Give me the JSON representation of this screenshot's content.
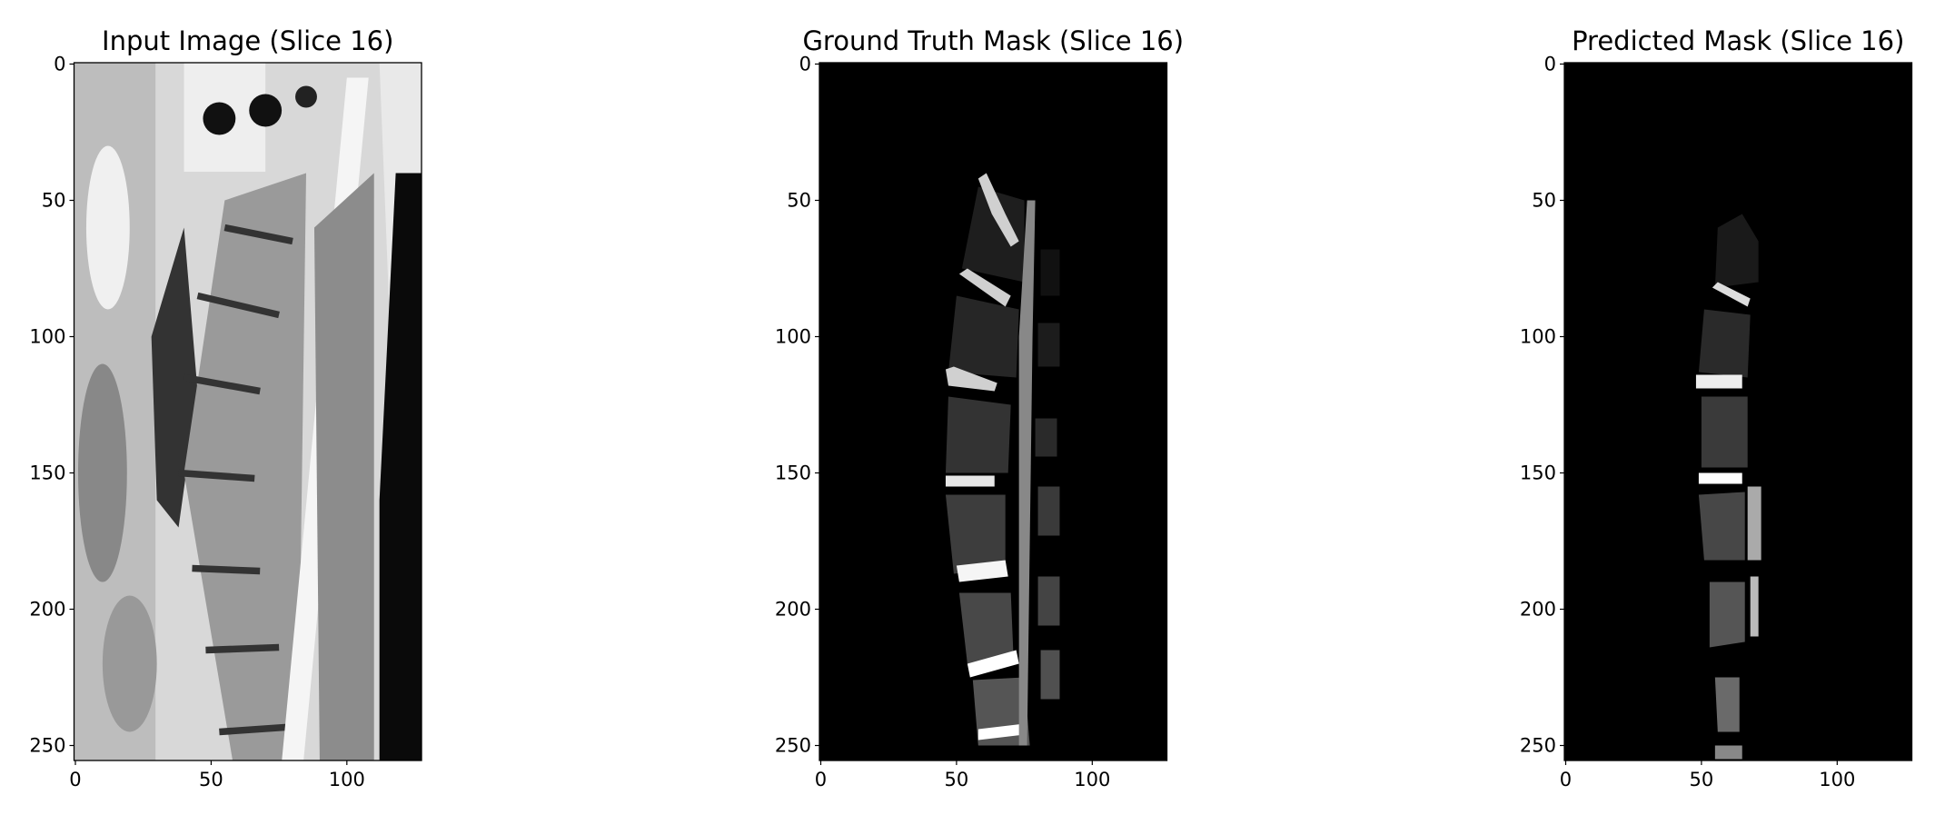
{
  "chart_data": [
    {
      "type": "image",
      "title": "Input Image (Slice 16)",
      "xlim": [
        -0.5,
        127.5
      ],
      "ylim": [
        255.5,
        -0.5
      ],
      "xticks": [
        0,
        50,
        100
      ],
      "yticks": [
        0,
        50,
        100,
        150,
        200,
        250
      ]
    },
    {
      "type": "image",
      "title": "Ground Truth Mask (Slice 16)",
      "xlim": [
        -0.5,
        127.5
      ],
      "ylim": [
        255.5,
        -0.5
      ],
      "xticks": [
        0,
        50,
        100
      ],
      "yticks": [
        0,
        50,
        100,
        150,
        200,
        250
      ]
    },
    {
      "type": "image",
      "title": "Predicted Mask (Slice 16)",
      "xlim": [
        -0.5,
        127.5
      ],
      "ylim": [
        255.5,
        -0.5
      ],
      "xticks": [
        0,
        50,
        100
      ],
      "yticks": [
        0,
        50,
        100,
        150,
        200,
        250
      ]
    }
  ]
}
